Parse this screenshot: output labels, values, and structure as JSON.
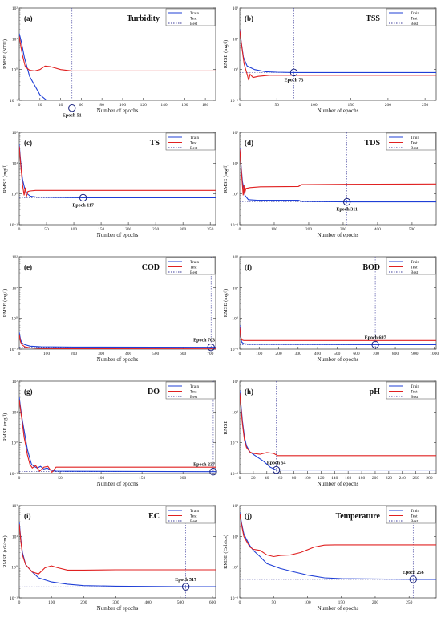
{
  "legend": {
    "train": "Train",
    "test": "Test",
    "best": "Best"
  },
  "colors": {
    "train": "#1f3fd6",
    "test": "#e02020",
    "best": "#3a3a9a"
  },
  "chart_data": [
    {
      "type": "line",
      "letter": "(a)",
      "title": "Turbidity",
      "xlabel": "Number of epochs",
      "ylabel": "RMSE (NTU)",
      "xlim": [
        0,
        190
      ],
      "xticks": [
        0,
        20,
        40,
        60,
        80,
        100,
        120,
        140,
        160,
        180
      ],
      "ylog": [
        -1,
        2
      ],
      "yticks": [
        "10⁻¹",
        "10⁰",
        "10¹",
        "10²"
      ],
      "best_epoch": 51,
      "best_rmse": 0.056,
      "best_label": "Epoch 51",
      "best_label_side": "below",
      "series": [
        {
          "name": "Train",
          "x": [
            0,
            2,
            5,
            10,
            20,
            30,
            40,
            51,
            60,
            100,
            190
          ],
          "y": [
            15,
            8,
            2.5,
            0.6,
            0.15,
            0.08,
            0.065,
            0.057,
            0.056,
            0.056,
            0.056
          ]
        },
        {
          "name": "Test",
          "x": [
            0,
            3,
            6,
            10,
            15,
            20,
            25,
            30,
            40,
            51,
            100,
            190
          ],
          "y": [
            12,
            3,
            1.2,
            0.95,
            0.9,
            1.0,
            1.3,
            1.25,
            1.0,
            0.9,
            0.9,
            0.9
          ]
        }
      ]
    },
    {
      "type": "line",
      "letter": "(b)",
      "title": "TSS",
      "xlabel": "Number of epochs",
      "ylabel": "RMSE (mg/l)",
      "xlim": [
        0,
        265
      ],
      "xticks": [
        0,
        50,
        100,
        150,
        200,
        250
      ],
      "ylog": [
        -1,
        2
      ],
      "yticks": [
        "10⁻¹",
        "10⁰",
        "10¹",
        "10²"
      ],
      "best_epoch": 73,
      "best_rmse": 0.8,
      "best_label": "Epoch 73",
      "best_label_side": "below",
      "series": [
        {
          "name": "Train",
          "x": [
            0,
            2,
            5,
            10,
            20,
            35,
            50,
            73,
            100,
            265
          ],
          "y": [
            20,
            8,
            2.5,
            1.3,
            1.0,
            0.85,
            0.82,
            0.8,
            0.8,
            0.8
          ]
        },
        {
          "name": "Test",
          "x": [
            0,
            3,
            6,
            10,
            12,
            14,
            18,
            25,
            40,
            73,
            265
          ],
          "y": [
            18,
            5,
            1.5,
            0.7,
            0.45,
            0.7,
            0.55,
            0.6,
            0.65,
            0.65,
            0.65
          ]
        }
      ]
    },
    {
      "type": "line",
      "letter": "(c)",
      "title": "TS",
      "xlabel": "Number of epochs",
      "ylabel": "RMSE (mg/l)",
      "xlim": [
        0,
        360
      ],
      "xticks": [
        0,
        50,
        100,
        150,
        200,
        250,
        300,
        350
      ],
      "ylog": [
        -1,
        2
      ],
      "yticks": [
        "10⁻¹",
        "10⁰",
        "10¹",
        "10²"
      ],
      "best_epoch": 117,
      "best_rmse": 0.75,
      "best_label": "Epoch 117",
      "best_label_side": "below",
      "series": [
        {
          "name": "Train",
          "x": [
            0,
            3,
            6,
            10,
            15,
            20,
            30,
            60,
            117,
            360
          ],
          "y": [
            40,
            10,
            3,
            1.5,
            1.0,
            0.85,
            0.8,
            0.77,
            0.75,
            0.75
          ]
        },
        {
          "name": "Test",
          "x": [
            0,
            3,
            6,
            9,
            11,
            13,
            16,
            20,
            30,
            117,
            360
          ],
          "y": [
            35,
            8,
            2,
            0.9,
            1.6,
            0.8,
            1.2,
            1.25,
            1.3,
            1.3,
            1.3
          ]
        }
      ]
    },
    {
      "type": "line",
      "letter": "(d)",
      "title": "TDS",
      "xlabel": "Number of epochs",
      "ylabel": "RMSE (mg/l)",
      "xlim": [
        0,
        570
      ],
      "xticks": [
        0,
        100,
        200,
        300,
        400,
        500
      ],
      "ylog": [
        -1,
        2
      ],
      "yticks": [
        "10⁻¹",
        "10⁰",
        "10¹",
        "10²"
      ],
      "best_epoch": 311,
      "best_rmse": 0.55,
      "best_label": "Epoch 311",
      "best_label_side": "below",
      "series": [
        {
          "name": "Train",
          "x": [
            0,
            4,
            8,
            15,
            25,
            50,
            170,
            180,
            311,
            570
          ],
          "y": [
            30,
            8,
            2.5,
            0.9,
            0.65,
            0.62,
            0.62,
            0.57,
            0.55,
            0.55
          ]
        },
        {
          "name": "Test",
          "x": [
            0,
            4,
            8,
            10,
            12,
            14,
            18,
            30,
            60,
            170,
            180,
            311,
            570
          ],
          "y": [
            28,
            7,
            1.8,
            0.9,
            2.0,
            1.0,
            1.5,
            1.6,
            1.7,
            1.75,
            2.0,
            2.05,
            2.1
          ]
        }
      ]
    },
    {
      "type": "line",
      "letter": "(e)",
      "title": "COD",
      "xlabel": "Number of epochs",
      "ylabel": "RMSE (mg/l)",
      "xlim": [
        0,
        720
      ],
      "xticks": [
        0,
        100,
        200,
        300,
        400,
        500,
        600,
        700
      ],
      "ylog": [
        -1,
        2
      ],
      "yticks": [
        "10⁻¹",
        "10⁰",
        "10¹",
        "10²"
      ],
      "best_epoch": 703,
      "best_rmse": 0.115,
      "best_label": "Epoch 703",
      "best_label_side": "above",
      "series": [
        {
          "name": "Train",
          "x": [
            0,
            5,
            10,
            20,
            40,
            80,
            200,
            703,
            720
          ],
          "y": [
            0.35,
            0.2,
            0.16,
            0.14,
            0.125,
            0.12,
            0.117,
            0.115,
            0.115
          ]
        },
        {
          "name": "Test",
          "x": [
            0,
            5,
            10,
            20,
            40,
            80,
            200,
            703,
            720
          ],
          "y": [
            0.3,
            0.17,
            0.14,
            0.12,
            0.11,
            0.105,
            0.103,
            0.102,
            0.102
          ]
        }
      ]
    },
    {
      "type": "line",
      "letter": "(f)",
      "title": "BOD",
      "xlabel": "Number of epochs",
      "ylabel": "RMSE (mg/l)",
      "xlim": [
        0,
        1010
      ],
      "xticks": [
        0,
        100,
        200,
        300,
        400,
        500,
        600,
        700,
        800,
        900,
        1000
      ],
      "ylog": [
        -1,
        2
      ],
      "yticks": [
        "10⁻¹",
        "10⁰",
        "10¹",
        "10²"
      ],
      "best_epoch": 697,
      "best_rmse": 0.14,
      "best_label": "Epoch 697",
      "best_label_side": "above",
      "series": [
        {
          "name": "Train",
          "x": [
            0,
            5,
            10,
            20,
            50,
            697,
            1010
          ],
          "y": [
            0.6,
            0.25,
            0.17,
            0.15,
            0.145,
            0.14,
            0.14
          ]
        },
        {
          "name": "Test",
          "x": [
            0,
            5,
            10,
            20,
            50,
            697,
            1010
          ],
          "y": [
            0.5,
            0.25,
            0.2,
            0.19,
            0.19,
            0.19,
            0.19
          ]
        }
      ]
    },
    {
      "type": "line",
      "letter": "(g)",
      "title": "DO",
      "xlabel": "Number of epochs",
      "ylabel": "RMSE (mg/l)",
      "xlim": [
        0,
        240
      ],
      "xticks": [
        0,
        50,
        100,
        150,
        200
      ],
      "ylog": [
        -1,
        2
      ],
      "yticks": [
        "10⁻¹",
        "10⁰",
        "10¹",
        "10²"
      ],
      "best_epoch": 237,
      "best_rmse": 0.115,
      "best_label": "Epoch 237",
      "best_label_side": "above",
      "series": [
        {
          "name": "Train",
          "x": [
            0,
            2,
            4,
            6,
            8,
            10,
            13,
            15,
            18,
            22,
            26,
            30,
            34,
            38,
            45,
            60,
            237,
            240
          ],
          "y": [
            30,
            12,
            5,
            2.5,
            1.2,
            0.6,
            0.3,
            0.2,
            0.17,
            0.15,
            0.17,
            0.14,
            0.15,
            0.13,
            0.12,
            0.118,
            0.115,
            0.115
          ]
        },
        {
          "name": "Test",
          "x": [
            0,
            2,
            4,
            6,
            8,
            10,
            13,
            16,
            20,
            25,
            30,
            35,
            40,
            45,
            60,
            237,
            240
          ],
          "y": [
            25,
            10,
            4,
            1.5,
            0.8,
            0.4,
            0.2,
            0.15,
            0.18,
            0.12,
            0.16,
            0.17,
            0.11,
            0.16,
            0.16,
            0.16,
            0.16
          ]
        }
      ]
    },
    {
      "type": "line",
      "letter": "(h)",
      "title": "pH",
      "xlabel": "Number of epochs",
      "ylabel": "RMSE",
      "xlim": [
        0,
        290
      ],
      "xticks": [
        0,
        20,
        40,
        60,
        80,
        100,
        120,
        140,
        160,
        180,
        200,
        220,
        240,
        260,
        280
      ],
      "ylog": [
        -2,
        1
      ],
      "yticks": [
        "10⁻²",
        "10⁻¹",
        "10⁰",
        "10¹"
      ],
      "best_epoch": 54,
      "best_rmse": 0.013,
      "best_label": "Epoch 54",
      "best_label_side": "above",
      "series": [
        {
          "name": "Train",
          "x": [
            0,
            2,
            4,
            7,
            10,
            15,
            25,
            35,
            45,
            54,
            80,
            290
          ],
          "y": [
            5,
            1.5,
            0.5,
            0.15,
            0.08,
            0.05,
            0.035,
            0.025,
            0.016,
            0.013,
            0.013,
            0.013
          ]
        },
        {
          "name": "Test",
          "x": [
            0,
            2,
            4,
            7,
            10,
            15,
            20,
            30,
            40,
            50,
            56,
            60,
            100,
            290
          ],
          "y": [
            4,
            1.2,
            0.4,
            0.12,
            0.07,
            0.05,
            0.045,
            0.042,
            0.048,
            0.045,
            0.038,
            0.038,
            0.038,
            0.038
          ]
        }
      ]
    },
    {
      "type": "line",
      "letter": "(i)",
      "title": "EC",
      "xlabel": "Number of epochs",
      "ylabel": "RMSE (uS/cm)",
      "xlim": [
        0,
        610
      ],
      "xticks": [
        0,
        100,
        200,
        300,
        400,
        500,
        600
      ],
      "ylog": [
        -1,
        2
      ],
      "yticks": [
        "10⁻¹",
        "10⁰",
        "10¹",
        "10²"
      ],
      "best_epoch": 517,
      "best_rmse": 0.23,
      "best_label": "Epoch 517",
      "best_label_side": "above",
      "series": [
        {
          "name": "Train",
          "x": [
            0,
            5,
            10,
            20,
            40,
            60,
            100,
            150,
            200,
            300,
            517,
            610
          ],
          "y": [
            30,
            8,
            3,
            1.2,
            0.7,
            0.45,
            0.33,
            0.28,
            0.25,
            0.24,
            0.23,
            0.23
          ]
        },
        {
          "name": "Test",
          "x": [
            0,
            5,
            10,
            20,
            40,
            60,
            80,
            100,
            120,
            150,
            200,
            300,
            517,
            610
          ],
          "y": [
            25,
            7,
            2.5,
            1.2,
            0.7,
            0.6,
            0.95,
            1.1,
            0.95,
            0.8,
            0.8,
            0.82,
            0.82,
            0.82
          ]
        }
      ]
    },
    {
      "type": "line",
      "letter": "(j)",
      "title": "Temperature",
      "xlabel": "Number of epochs",
      "ylabel": "RMSE (Celsius)",
      "xlim": [
        0,
        290
      ],
      "xticks": [
        0,
        50,
        100,
        150,
        200,
        250
      ],
      "ylog": [
        -1,
        2
      ],
      "yticks": [
        "10⁻¹",
        "10⁰",
        "10¹",
        "10²"
      ],
      "best_epoch": 256,
      "best_rmse": 0.4,
      "best_label": "Epoch 256",
      "best_label_side": "above",
      "series": [
        {
          "name": "Train",
          "x": [
            0,
            3,
            6,
            10,
            15,
            20,
            30,
            40,
            60,
            80,
            100,
            125,
            150,
            256,
            290
          ],
          "y": [
            60,
            25,
            12,
            8,
            5,
            3.5,
            2.2,
            1.3,
            0.9,
            0.7,
            0.55,
            0.45,
            0.42,
            0.4,
            0.4
          ]
        },
        {
          "name": "Test",
          "x": [
            0,
            3,
            6,
            10,
            15,
            20,
            30,
            40,
            50,
            60,
            75,
            90,
            110,
            125,
            140,
            256,
            290
          ],
          "y": [
            55,
            22,
            10,
            7,
            4.5,
            3.8,
            3.5,
            2.5,
            2.2,
            2.4,
            2.5,
            3.0,
            4.5,
            5.2,
            5.3,
            5.3,
            5.3
          ]
        }
      ]
    }
  ]
}
